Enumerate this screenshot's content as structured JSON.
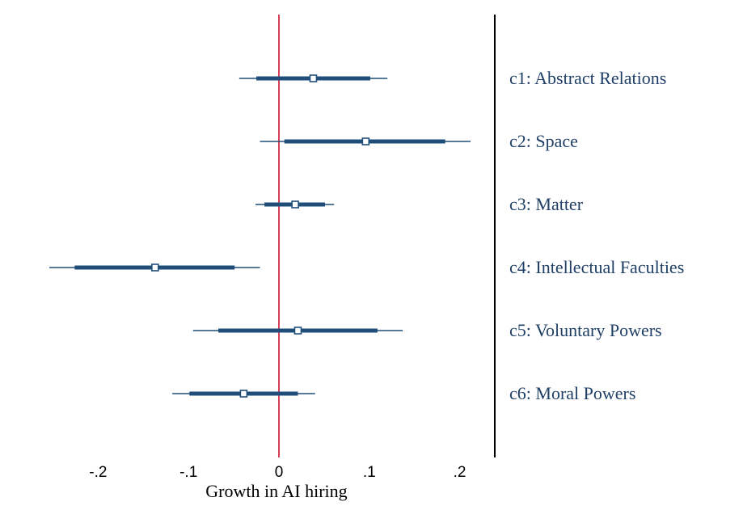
{
  "chart_data": {
    "type": "coefficient-plot",
    "xlabel": "Growth in AI hiring",
    "x_ticks": [
      -0.2,
      -0.1,
      0,
      0.1,
      0.2
    ],
    "x_tick_labels": [
      "-.2",
      "-.1",
      "0",
      ".1",
      ".2"
    ],
    "xlim": [
      -0.2525,
      0.2417
    ],
    "reference_line": 0,
    "series": [
      {
        "name": "c1: Abstract Relations",
        "estimate": 0.038,
        "ci90": [
          -0.025,
          0.101
        ],
        "ci95": [
          -0.044,
          0.12
        ]
      },
      {
        "name": "c2: Space",
        "estimate": 0.096,
        "ci90": [
          0.006,
          0.184
        ],
        "ci95": [
          -0.021,
          0.212
        ]
      },
      {
        "name": "c3: Matter",
        "estimate": 0.018,
        "ci90": [
          -0.016,
          0.051
        ],
        "ci95": [
          -0.026,
          0.061
        ]
      },
      {
        "name": "c4: Intellectual Faculties",
        "estimate": -0.137,
        "ci90": [
          -0.226,
          -0.049
        ],
        "ci95": [
          -0.254,
          -0.021
        ]
      },
      {
        "name": "c5: Voluntary Powers",
        "estimate": 0.021,
        "ci90": [
          -0.067,
          0.109
        ],
        "ci95": [
          -0.095,
          0.137
        ]
      },
      {
        "name": "c6: Moral Powers",
        "estimate": -0.039,
        "ci90": [
          -0.099,
          0.021
        ],
        "ci95": [
          -0.118,
          0.04
        ]
      }
    ],
    "colors": {
      "marker": "#1f4e79",
      "reference_line": "#c8102e",
      "label": "#1f3f66",
      "axis": "#000000"
    }
  }
}
